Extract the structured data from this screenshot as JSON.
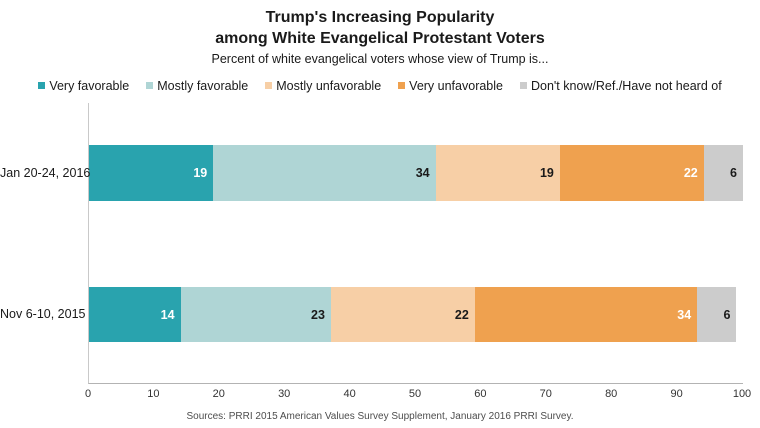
{
  "title": {
    "line1": "Trump's Increasing Popularity",
    "line2": "among White Evangelical Protestant Voters"
  },
  "subtitle": "Percent of white evangelical voters whose view of Trump is...",
  "footer": {
    "source": "Sources: PRRI 2015 American Values Survey Supplement, January 2016 PRRI Survey."
  },
  "colors": {
    "very_favorable": "#29a3ae",
    "mostly_favorable": "#afd5d5",
    "mostly_unfavorable": "#f7cfa6",
    "very_unfavorable": "#efa14f",
    "dont_know": "#cccccc",
    "axis_line": "#b3b3b3"
  },
  "chart_data": {
    "type": "bar",
    "orientation": "horizontal-stacked",
    "title": "Trump's Increasing Popularity among White Evangelical Protestant Voters",
    "subtitle": "Percent of white evangelical voters whose view of Trump is...",
    "categories": [
      "Jan 20-24, 2016",
      "Nov 6-10, 2015"
    ],
    "series": [
      {
        "name": "Very favorable",
        "color": "#29a3ae",
        "label_color": "#ffffff",
        "values": [
          19,
          14
        ]
      },
      {
        "name": "Mostly favorable",
        "color": "#afd5d5",
        "label_color": "#1a1a1a",
        "values": [
          34,
          23
        ]
      },
      {
        "name": "Mostly unfavorable",
        "color": "#f7cfa6",
        "label_color": "#1a1a1a",
        "values": [
          19,
          22
        ]
      },
      {
        "name": "Very unfavorable",
        "color": "#efa14f",
        "label_color": "#ffffff",
        "values": [
          22,
          34
        ]
      },
      {
        "name": "Don't know/Ref./Have not heard of",
        "color": "#cccccc",
        "label_color": "#1a1a1a",
        "values": [
          6,
          6
        ]
      }
    ],
    "xlabel": "",
    "ylabel": "",
    "xlim": [
      0,
      100
    ],
    "x_ticks": [
      0,
      10,
      20,
      30,
      40,
      50,
      60,
      70,
      80,
      90,
      100
    ],
    "grid": false,
    "legend_position": "top",
    "value_labels": "inside-right"
  }
}
